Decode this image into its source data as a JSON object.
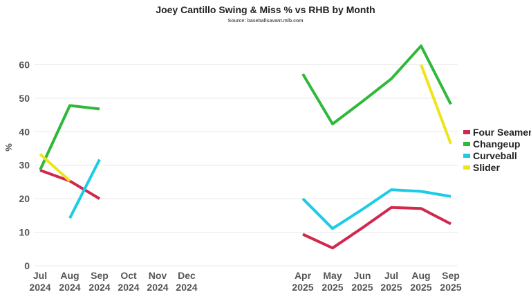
{
  "chart_data": {
    "type": "line",
    "title": "Joey Cantillo Swing & Miss % vs RHB by Month",
    "subtitle": "Source: baseballsavant.mlb.com",
    "ylabel": "%",
    "xlabel": "",
    "ylim": [
      0,
      70
    ],
    "yticks": [
      0,
      10,
      20,
      30,
      40,
      50,
      60
    ],
    "grid": true,
    "legend_position": "right",
    "categories": [
      {
        "month": "Jul",
        "year": "2024"
      },
      {
        "month": "Aug",
        "year": "2024"
      },
      {
        "month": "Sep",
        "year": "2024"
      },
      {
        "month": "Oct",
        "year": "2024"
      },
      {
        "month": "Nov",
        "year": "2024"
      },
      {
        "month": "Dec",
        "year": "2024"
      },
      {
        "month": "Apr",
        "year": "2025"
      },
      {
        "month": "May",
        "year": "2025"
      },
      {
        "month": "Jun",
        "year": "2025"
      },
      {
        "month": "Jul",
        "year": "2025"
      },
      {
        "month": "Aug",
        "year": "2025"
      },
      {
        "month": "Sep",
        "year": "2025"
      }
    ],
    "series": [
      {
        "name": "Four Seamer",
        "color": "#d1284d",
        "values": [
          28.5,
          25.3,
          20.0,
          null,
          null,
          null,
          9.4,
          5.3,
          11.3,
          17.4,
          17.1,
          12.5
        ]
      },
      {
        "name": "Changeup",
        "color": "#2fb83a",
        "values": [
          28.6,
          47.8,
          46.8,
          null,
          null,
          null,
          57.2,
          42.3,
          49.0,
          55.8,
          65.6,
          48.2
        ]
      },
      {
        "name": "Curveball",
        "color": "#1ccbe6",
        "values": [
          null,
          14.2,
          31.7,
          null,
          null,
          null,
          20.0,
          11.1,
          16.8,
          22.7,
          22.2,
          20.7
        ]
      },
      {
        "name": "Slider",
        "color": "#ede51a",
        "values": [
          33.3,
          25.3,
          null,
          null,
          null,
          null,
          null,
          null,
          null,
          null,
          60.0,
          36.4
        ]
      }
    ]
  }
}
